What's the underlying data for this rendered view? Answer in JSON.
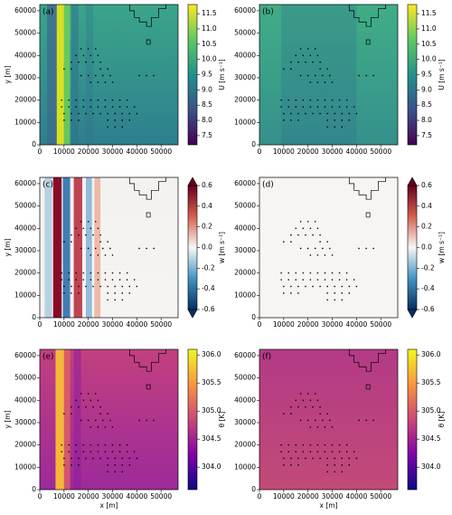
{
  "turbines": {
    "x": [
      17000,
      20000,
      23000,
      15000,
      18000,
      21000,
      24000,
      13000,
      16000,
      19000,
      22000,
      25000,
      10000,
      13000,
      25000,
      28000,
      17000,
      20000,
      23000,
      26000,
      29000,
      41000,
      44000,
      47000,
      21000,
      24000,
      27000,
      30000,
      9000,
      12000,
      15000,
      18000,
      21000,
      24000,
      27000,
      30000,
      33000,
      36000,
      9000,
      12000,
      15000,
      18000,
      21000,
      24000,
      27000,
      30000,
      33000,
      36000,
      39000,
      10000,
      13000,
      16000,
      19000,
      22000,
      25000,
      28000,
      31000,
      34000,
      37000,
      40000,
      10000,
      13000,
      16000,
      28000,
      31000,
      34000,
      37000,
      28000,
      31000,
      34000
    ],
    "y": [
      43000,
      43000,
      43000,
      40000,
      40000,
      40000,
      40000,
      37000,
      37000,
      37000,
      37000,
      37000,
      34000,
      34000,
      34000,
      34000,
      31000,
      31000,
      31000,
      31000,
      31000,
      31000,
      31000,
      31000,
      28000,
      28000,
      28000,
      28000,
      20000,
      20000,
      20000,
      20000,
      20000,
      20000,
      20000,
      20000,
      20000,
      20000,
      17000,
      17000,
      17000,
      17000,
      17000,
      17000,
      17000,
      17000,
      17000,
      17000,
      17000,
      14000,
      14000,
      14000,
      14000,
      14000,
      14000,
      14000,
      14000,
      14000,
      14000,
      14000,
      11000,
      11000,
      11000,
      11000,
      11000,
      11000,
      11000,
      8000,
      8000,
      8000
    ]
  },
  "chart_data": [
    {
      "type": "heatmap",
      "panel_label": "(a)",
      "ylabel": "y [m]",
      "xlim": [
        0,
        57000
      ],
      "ylim": [
        0,
        62800
      ],
      "xticks": [
        0,
        10000,
        20000,
        30000,
        40000,
        50000
      ],
      "yticks": [
        0,
        10000,
        20000,
        30000,
        40000,
        50000,
        60000
      ],
      "colorbar": {
        "label": "U [m s⁻¹]",
        "lim": [
          7.2,
          11.8
        ],
        "extend": false,
        "colors": [
          "#440154",
          "#3b528b",
          "#21918c",
          "#5ec962",
          "#fde725"
        ],
        "ticks": [
          7.5,
          {
            "value": 8,
            "label": "8.0"
          },
          8.5,
          {
            "value": 9,
            "label": "9.0"
          },
          9.5,
          {
            "value": 10,
            "label": "10.0"
          },
          10.5,
          {
            "value": 11,
            "label": "11.0"
          },
          11.5
        ]
      }
    },
    {
      "type": "heatmap",
      "panel_label": "(b)",
      "xlim": [
        0,
        57000
      ],
      "ylim": [
        0,
        62800
      ],
      "xticks": [
        0,
        10000,
        20000,
        30000,
        40000,
        50000
      ],
      "yticks": [
        0,
        10000,
        20000,
        30000,
        40000,
        50000,
        60000
      ],
      "colorbar": {
        "label": "U [m s⁻¹]",
        "lim": [
          7.2,
          11.8
        ],
        "extend": false,
        "colors": [
          "#440154",
          "#3b528b",
          "#21918c",
          "#5ec962",
          "#fde725"
        ],
        "ticks": [
          7.5,
          {
            "value": 8,
            "label": "8.0"
          },
          8.5,
          {
            "value": 9,
            "label": "9.0"
          },
          9.5,
          {
            "value": 10,
            "label": "10.0"
          },
          10.5,
          {
            "value": 11,
            "label": "11.0"
          },
          11.5
        ]
      }
    },
    {
      "type": "heatmap",
      "panel_label": "(c)",
      "ylabel": "y [m]",
      "xlim": [
        0,
        57000
      ],
      "ylim": [
        0,
        62800
      ],
      "xticks": [
        0,
        10000,
        20000,
        30000,
        40000,
        50000
      ],
      "yticks": [
        0,
        10000,
        20000,
        30000,
        40000,
        50000,
        60000
      ],
      "colorbar": {
        "label": "w [m s⁻¹]",
        "lim": [
          -0.6,
          0.6
        ],
        "extend": true,
        "colors": [
          "#053061",
          "#4393c3",
          "#f7f7f7",
          "#d6604d",
          "#67001f"
        ],
        "ticks": [
          -0.6,
          -0.4,
          -0.2,
          {
            "value": 0,
            "label": "0.0"
          },
          0.2,
          0.4,
          0.6
        ]
      }
    },
    {
      "type": "heatmap",
      "panel_label": "(d)",
      "xlim": [
        0,
        57000
      ],
      "ylim": [
        0,
        62800
      ],
      "xticks": [
        0,
        10000,
        20000,
        30000,
        40000,
        50000
      ],
      "yticks": [
        0,
        10000,
        20000,
        30000,
        40000,
        50000,
        60000
      ],
      "colorbar": {
        "label": "w [m s⁻¹]",
        "lim": [
          -0.6,
          0.6
        ],
        "extend": true,
        "colors": [
          "#053061",
          "#4393c3",
          "#f7f7f7",
          "#d6604d",
          "#67001f"
        ],
        "ticks": [
          -0.6,
          -0.4,
          -0.2,
          {
            "value": 0,
            "label": "0.0"
          },
          0.2,
          0.4,
          0.6
        ]
      }
    },
    {
      "type": "heatmap",
      "panel_label": "(e)",
      "ylabel": "y [m]",
      "xlabel": "x [m]",
      "xlim": [
        0,
        57000
      ],
      "ylim": [
        0,
        62800
      ],
      "xticks": [
        0,
        10000,
        20000,
        30000,
        40000,
        50000
      ],
      "yticks": [
        0,
        10000,
        20000,
        30000,
        40000,
        50000,
        60000
      ],
      "colorbar": {
        "label": "θ [K]",
        "lim": [
          303.6,
          306.1
        ],
        "extend": false,
        "colors": [
          "#0d0887",
          "#7e03a8",
          "#cc4778",
          "#f89540",
          "#f0f921"
        ],
        "ticks": [
          {
            "value": 304,
            "label": "304.0"
          },
          304.5,
          {
            "value": 305,
            "label": "305.0"
          },
          305.5,
          {
            "value": 306,
            "label": "306.0"
          }
        ]
      }
    },
    {
      "type": "heatmap",
      "panel_label": "(f)",
      "xlabel": "x [m]",
      "xlim": [
        0,
        57000
      ],
      "ylim": [
        0,
        62800
      ],
      "xticks": [
        0,
        10000,
        20000,
        30000,
        40000,
        50000
      ],
      "yticks": [
        0,
        10000,
        20000,
        30000,
        40000,
        50000,
        60000
      ],
      "colorbar": {
        "label": "θ [K]",
        "lim": [
          303.6,
          306.1
        ],
        "extend": false,
        "colors": [
          "#0d0887",
          "#7e03a8",
          "#cc4778",
          "#f89540",
          "#f0f921"
        ],
        "ticks": [
          {
            "value": 304,
            "label": "304.0"
          },
          304.5,
          {
            "value": 305,
            "label": "305.0"
          },
          305.5,
          {
            "value": 306,
            "label": "306.0"
          }
        ]
      }
    }
  ]
}
